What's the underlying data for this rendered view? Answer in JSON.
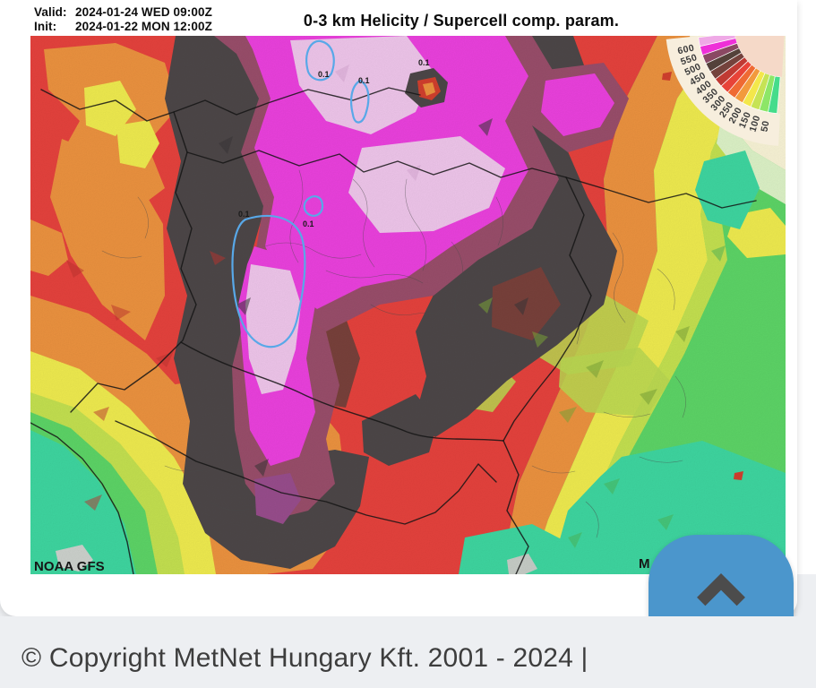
{
  "header": {
    "valid_label": "Valid:",
    "valid_value": "2024-01-24 WED 09:00Z",
    "init_label": "Init:",
    "init_value": "2024-01-22 MON 12:00Z",
    "title": "0-3 km Helicity / Supercell comp. param."
  },
  "map": {
    "source_label": "NOAA GFS",
    "watermark": "M",
    "contour_label": "0.1",
    "contour_line_color": "#58a8e8"
  },
  "legend": {
    "values": [
      "600",
      "550",
      "500",
      "450",
      "400",
      "350",
      "300",
      "250",
      "200",
      "150",
      "100",
      "50"
    ],
    "wedge_colors": [
      "#efa9e6",
      "#ee2fd8",
      "#8a4863",
      "#54413a",
      "#74423c",
      "#c03a33",
      "#e84338",
      "#ef6a33",
      "#f29a3d",
      "#f3e74b",
      "#c6e355",
      "#8de667",
      "#45dc8b"
    ],
    "band_color": "#f7eedd",
    "inner_color": "#f5d9c8",
    "label_color": "#3a3a3a"
  },
  "palette": {
    "red": "#e8433e",
    "orange": "#ef9440",
    "yellow": "#f2ee50",
    "yellow_green": "#c6e351",
    "green": "#5ed768",
    "teal": "#3fd9a2",
    "magenta": "#ee42e0",
    "light_pink": "#f2c8ee",
    "charcoal": "#4e4849",
    "maroon": "#9b4f6c",
    "brown_red": "#7a423c",
    "cream": "#fbf6d8"
  },
  "scroll_button": {
    "color": "#4b96cc",
    "icon": "chevron-up"
  },
  "footer": {
    "copyright": "© Copyright MetNet Hungary Kft. 2001 - 2024 |"
  }
}
